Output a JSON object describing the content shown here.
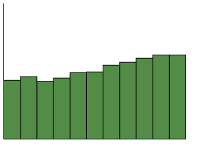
{
  "chart_data": {
    "type": "bar",
    "categories": [
      null,
      null,
      null,
      null,
      null,
      null,
      null,
      null,
      null,
      null,
      null
    ],
    "values": [
      43.4,
      46,
      42.4,
      45,
      49,
      49.5,
      54.5,
      56.6,
      59.6,
      62,
      62
    ],
    "color": "#528c46",
    "edgecolor": "#000000",
    "ylim": [
      0,
      100
    ]
  }
}
